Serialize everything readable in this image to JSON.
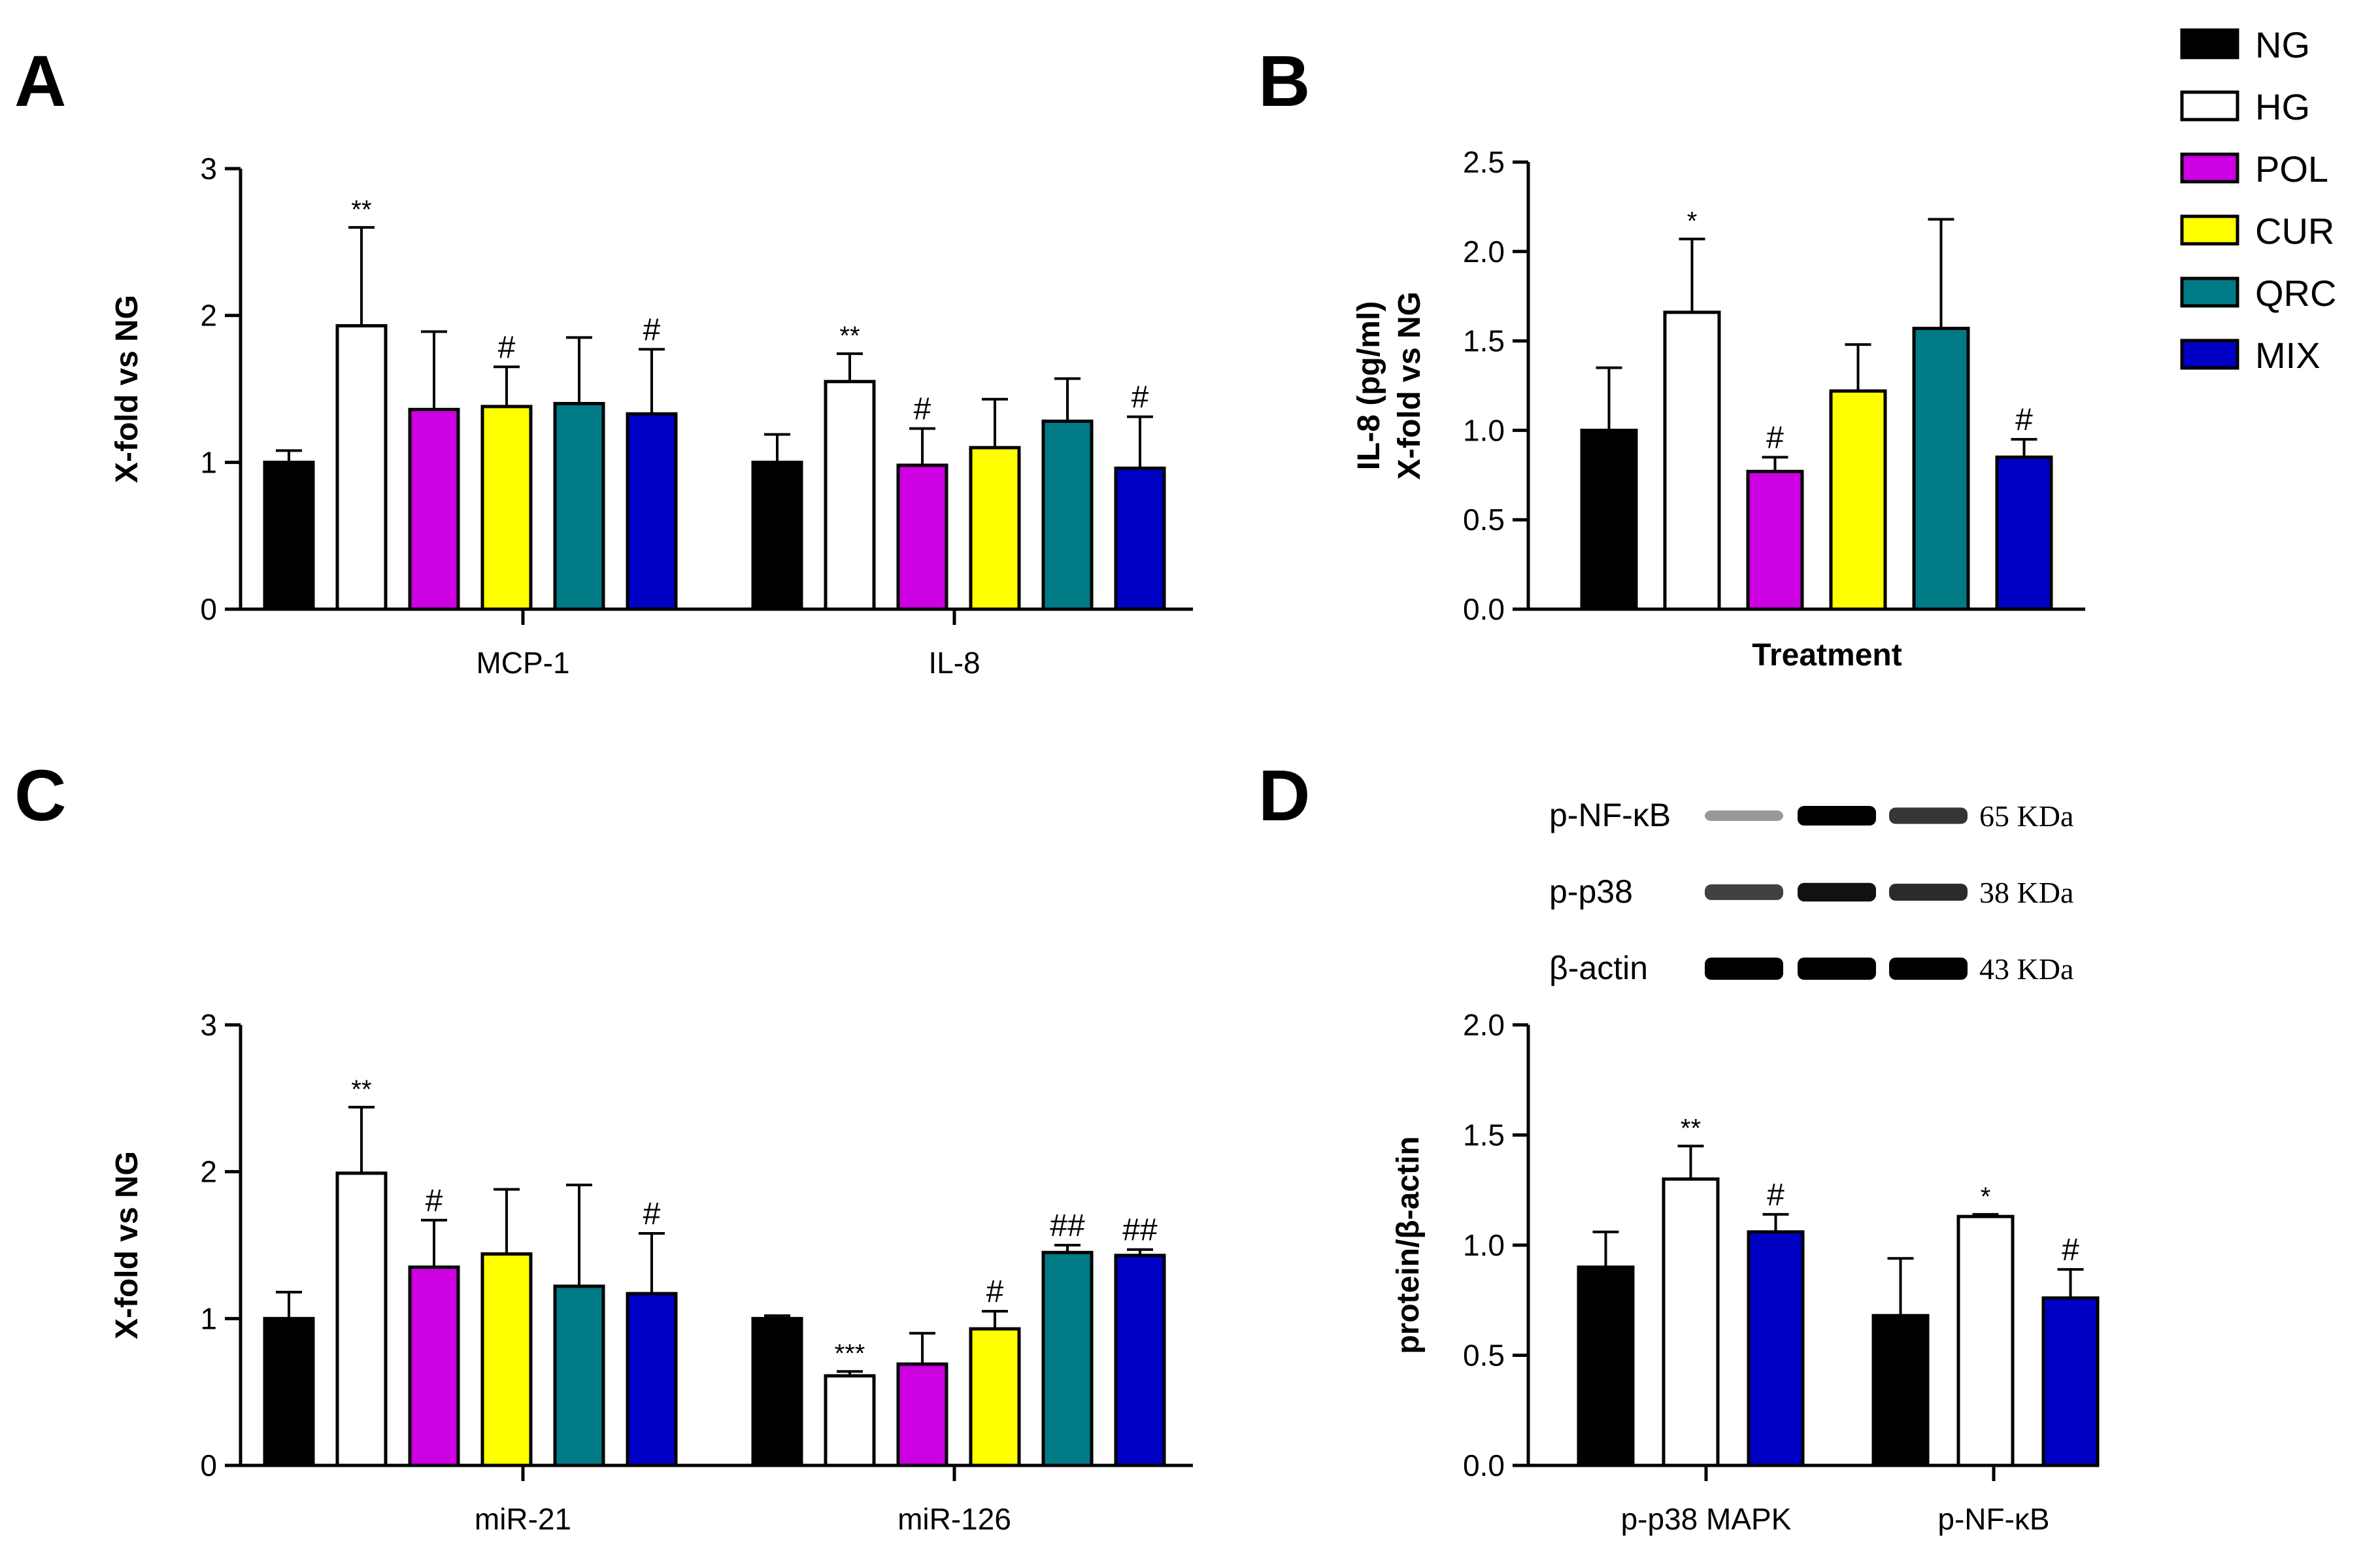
{
  "colors": {
    "NG": "#000000",
    "HG": "#ffffff",
    "POL": "#cc00e0",
    "CUR": "#ffff00",
    "QRC": "#007b86",
    "MIX": "#0000c4"
  },
  "legend": [
    "NG",
    "HG",
    "POL",
    "CUR",
    "QRC",
    "MIX"
  ],
  "chart_data": [
    {
      "panel": "A",
      "type": "bar",
      "ylabel": "X-fold vs NG",
      "xlabel": "",
      "ylim": [
        0,
        3
      ],
      "yticks": [
        "0",
        "1",
        "2",
        "3"
      ],
      "categories": [
        "MCP-1",
        "IL-8"
      ],
      "series": [
        {
          "name": "NG",
          "values": [
            1.0,
            1.0
          ],
          "errors": [
            0.08,
            0.19
          ],
          "sig": [
            "",
            ""
          ]
        },
        {
          "name": "HG",
          "values": [
            1.93,
            1.55
          ],
          "errors": [
            0.67,
            0.19
          ],
          "sig": [
            "**",
            "**"
          ]
        },
        {
          "name": "POL",
          "values": [
            1.36,
            0.98
          ],
          "errors": [
            0.53,
            0.25
          ],
          "sig": [
            "",
            "#"
          ]
        },
        {
          "name": "CUR",
          "values": [
            1.38,
            1.1
          ],
          "errors": [
            0.27,
            0.33
          ],
          "sig": [
            "#",
            ""
          ]
        },
        {
          "name": "QRC",
          "values": [
            1.4,
            1.28
          ],
          "errors": [
            0.45,
            0.29
          ],
          "sig": [
            "",
            ""
          ]
        },
        {
          "name": "MIX",
          "values": [
            1.33,
            0.96
          ],
          "errors": [
            0.44,
            0.35
          ],
          "sig": [
            "#",
            "#"
          ]
        }
      ]
    },
    {
      "panel": "B",
      "type": "bar",
      "ylabel": "IL-8 (pg/ml)\nX-fold vs NG",
      "xlabel": "Treatment",
      "ylim": [
        0,
        2.5
      ],
      "yticks": [
        "0.0",
        "0.5",
        "1.0",
        "1.5",
        "2.0",
        "2.5"
      ],
      "categories": [
        ""
      ],
      "series": [
        {
          "name": "NG",
          "values": [
            1.0
          ],
          "errors": [
            0.35
          ],
          "sig": [
            ""
          ]
        },
        {
          "name": "HG",
          "values": [
            1.66
          ],
          "errors": [
            0.41
          ],
          "sig": [
            "*"
          ]
        },
        {
          "name": "POL",
          "values": [
            0.77
          ],
          "errors": [
            0.08
          ],
          "sig": [
            "#"
          ]
        },
        {
          "name": "CUR",
          "values": [
            1.22
          ],
          "errors": [
            0.26
          ],
          "sig": [
            ""
          ]
        },
        {
          "name": "QRC",
          "values": [
            1.57
          ],
          "errors": [
            0.61
          ],
          "sig": [
            ""
          ]
        },
        {
          "name": "MIX",
          "values": [
            0.85
          ],
          "errors": [
            0.1
          ],
          "sig": [
            "#"
          ]
        }
      ]
    },
    {
      "panel": "C",
      "type": "bar",
      "ylabel": "X-fold vs NG",
      "xlabel": "",
      "ylim": [
        0,
        3
      ],
      "yticks": [
        "0",
        "1",
        "2",
        "3"
      ],
      "categories": [
        "miR-21",
        "miR-126"
      ],
      "series": [
        {
          "name": "NG",
          "values": [
            1.0,
            1.0
          ],
          "errors": [
            0.18,
            0.02
          ],
          "sig": [
            "",
            ""
          ]
        },
        {
          "name": "HG",
          "values": [
            1.99,
            0.61
          ],
          "errors": [
            0.45,
            0.03
          ],
          "sig": [
            "**",
            "***"
          ]
        },
        {
          "name": "POL",
          "values": [
            1.35,
            0.69
          ],
          "errors": [
            0.32,
            0.21
          ],
          "sig": [
            "#",
            ""
          ]
        },
        {
          "name": "CUR",
          "values": [
            1.44,
            0.93
          ],
          "errors": [
            0.44,
            0.12
          ],
          "sig": [
            "",
            "#"
          ]
        },
        {
          "name": "QRC",
          "values": [
            1.22,
            1.45
          ],
          "errors": [
            0.69,
            0.05
          ],
          "sig": [
            "",
            "##"
          ]
        },
        {
          "name": "MIX",
          "values": [
            1.17,
            1.43
          ],
          "errors": [
            0.41,
            0.04
          ],
          "sig": [
            "#",
            "##"
          ]
        }
      ]
    },
    {
      "panel": "D",
      "type": "bar",
      "ylabel": "protein/β-actin",
      "xlabel": "",
      "ylim": [
        0,
        2.0
      ],
      "yticks": [
        "0.0",
        "0.5",
        "1.0",
        "1.5",
        "2.0"
      ],
      "categories": [
        "p-p38 MAPK",
        "p-NF-κB"
      ],
      "series": [
        {
          "name": "NG",
          "values": [
            0.9,
            0.68
          ],
          "errors": [
            0.16,
            0.26
          ],
          "sig": [
            "",
            ""
          ]
        },
        {
          "name": "HG",
          "values": [
            1.3,
            1.13
          ],
          "errors": [
            0.15,
            0.01
          ],
          "sig": [
            "**",
            "*"
          ]
        },
        {
          "name": "MIX",
          "values": [
            1.06,
            0.76
          ],
          "errors": [
            0.08,
            0.13
          ],
          "sig": [
            "#",
            "#"
          ]
        }
      ]
    }
  ],
  "blot": {
    "rows": [
      {
        "label": "p-NF-κB",
        "kda": "65 KDa",
        "intensity": [
          0.3,
          1.0,
          0.75
        ]
      },
      {
        "label": "p-p38",
        "kda": "38 KDa",
        "intensity": [
          0.7,
          0.92,
          0.8
        ]
      },
      {
        "label": "β-actin",
        "kda": "43 KDa",
        "intensity": [
          1.0,
          1.0,
          1.0
        ]
      }
    ]
  }
}
